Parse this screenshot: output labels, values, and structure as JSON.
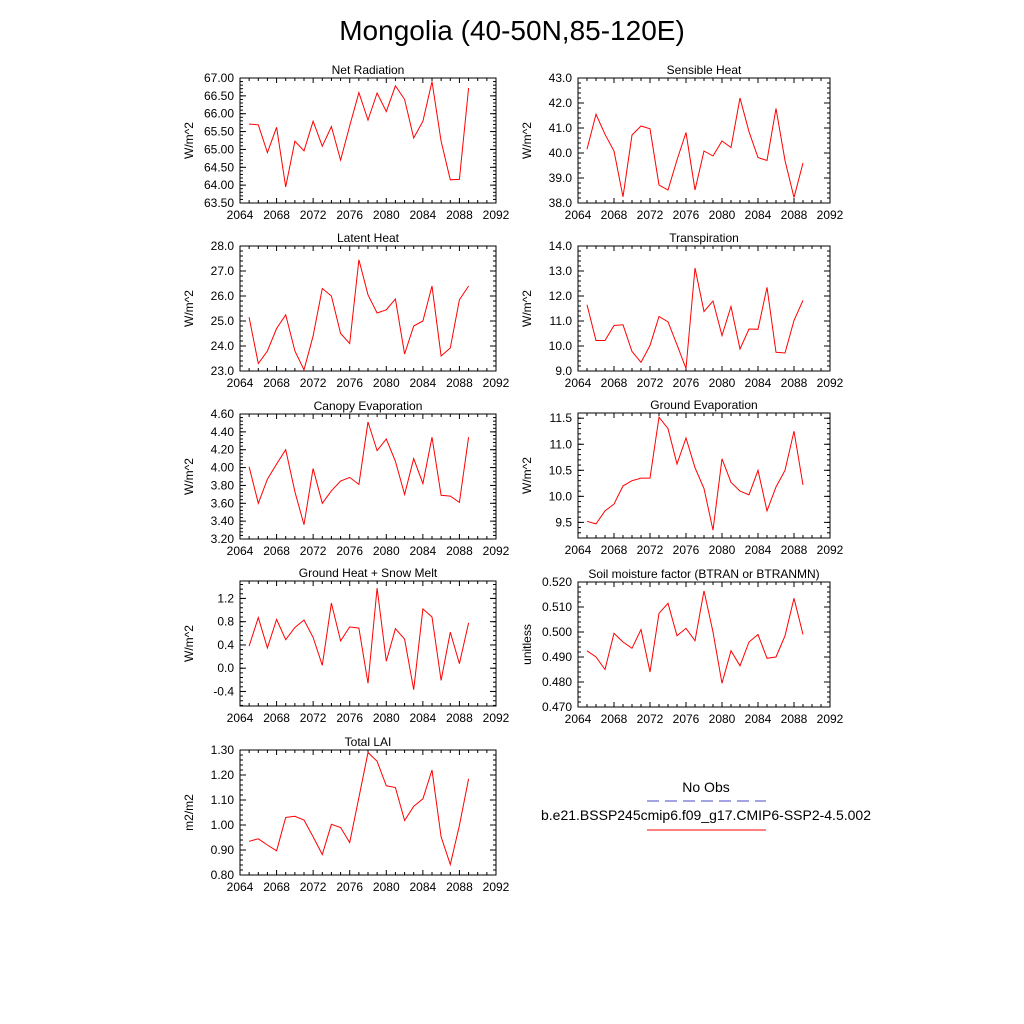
{
  "figure": {
    "title": "Mongolia (40-50N,85-120E)"
  },
  "legend": {
    "obs_label": "No Obs",
    "obs_color": "#4a4ac8",
    "model_label": "b.e21.BSSP245cmip6.f09_g17.CMIP6-SSP2-4.5.002",
    "model_color": "#ff0000"
  },
  "chart_data": [
    {
      "type": "line",
      "title": "Net Radiation",
      "ylabel": "W/m^2",
      "xlim": [
        2064,
        2092
      ],
      "ylim": [
        63.5,
        67.0
      ],
      "xticks": [
        "2064",
        "2068",
        "2072",
        "2076",
        "2080",
        "2084",
        "2088",
        "2092"
      ],
      "yticks": [
        "63.50",
        "64.00",
        "64.50",
        "65.00",
        "65.50",
        "66.00",
        "66.50",
        "67.00"
      ],
      "series": [
        {
          "x": [
            2065,
            2066,
            2067,
            2068,
            2069,
            2070,
            2071,
            2072,
            2073,
            2074,
            2075,
            2076,
            2077,
            2078,
            2079,
            2080,
            2081,
            2082,
            2083,
            2084,
            2085,
            2086,
            2087,
            2088,
            2089
          ],
          "values": [
            65.71,
            65.69,
            64.91,
            65.62,
            63.95,
            65.23,
            64.96,
            65.79,
            65.09,
            65.64,
            64.7,
            65.66,
            66.59,
            65.82,
            66.58,
            66.06,
            66.78,
            66.4,
            65.32,
            65.79,
            66.9,
            65.23,
            64.15,
            64.16,
            66.72
          ]
        }
      ]
    },
    {
      "type": "line",
      "title": "Sensible Heat",
      "ylabel": "W/m^2",
      "xlim": [
        2064,
        2092
      ],
      "ylim": [
        38.0,
        43.0
      ],
      "xticks": [
        "2064",
        "2068",
        "2072",
        "2076",
        "2080",
        "2084",
        "2088",
        "2092"
      ],
      "yticks": [
        "38.0",
        "39.0",
        "40.0",
        "41.0",
        "42.0",
        "43.0"
      ],
      "series": [
        {
          "x": [
            2065,
            2066,
            2067,
            2068,
            2069,
            2070,
            2071,
            2072,
            2073,
            2074,
            2075,
            2076,
            2077,
            2078,
            2079,
            2080,
            2081,
            2082,
            2083,
            2084,
            2085,
            2086,
            2087,
            2088,
            2089
          ],
          "values": [
            40.15,
            41.55,
            40.75,
            40.08,
            38.25,
            40.72,
            41.08,
            40.97,
            38.72,
            38.52,
            39.72,
            40.82,
            38.52,
            40.08,
            39.88,
            40.48,
            40.22,
            42.2,
            40.85,
            39.82,
            39.7,
            41.78,
            39.7,
            38.22,
            39.6
          ]
        }
      ]
    },
    {
      "type": "line",
      "title": "Latent Heat",
      "ylabel": "W/m^2",
      "xlim": [
        2064,
        2092
      ],
      "ylim": [
        23.0,
        28.0
      ],
      "xticks": [
        "2064",
        "2068",
        "2072",
        "2076",
        "2080",
        "2084",
        "2088",
        "2092"
      ],
      "yticks": [
        "23.0",
        "24.0",
        "25.0",
        "26.0",
        "27.0",
        "28.0"
      ],
      "series": [
        {
          "x": [
            2065,
            2066,
            2067,
            2068,
            2069,
            2070,
            2071,
            2072,
            2073,
            2074,
            2075,
            2076,
            2077,
            2078,
            2079,
            2080,
            2081,
            2082,
            2083,
            2084,
            2085,
            2086,
            2087,
            2088,
            2089
          ],
          "values": [
            25.15,
            23.3,
            23.8,
            24.7,
            25.25,
            23.8,
            23.05,
            24.4,
            26.3,
            26.0,
            24.5,
            24.1,
            27.45,
            26.05,
            25.32,
            25.45,
            25.88,
            23.68,
            24.8,
            25.0,
            26.4,
            23.6,
            23.92,
            25.85,
            26.4
          ]
        }
      ]
    },
    {
      "type": "line",
      "title": "Transpiration",
      "ylabel": "W/m^2",
      "xlim": [
        2064,
        2092
      ],
      "ylim": [
        9.0,
        14.0
      ],
      "xticks": [
        "2064",
        "2068",
        "2072",
        "2076",
        "2080",
        "2084",
        "2088",
        "2092"
      ],
      "yticks": [
        "9.0",
        "10.0",
        "11.0",
        "12.0",
        "13.0",
        "14.0"
      ],
      "series": [
        {
          "x": [
            2065,
            2066,
            2067,
            2068,
            2069,
            2070,
            2071,
            2072,
            2073,
            2074,
            2075,
            2076,
            2077,
            2078,
            2079,
            2080,
            2081,
            2082,
            2083,
            2084,
            2085,
            2086,
            2087,
            2088,
            2089
          ],
          "values": [
            11.65,
            10.22,
            10.22,
            10.82,
            10.85,
            9.78,
            9.35,
            10.02,
            11.18,
            10.97,
            10.05,
            9.1,
            13.12,
            11.38,
            11.8,
            10.42,
            11.58,
            9.88,
            10.68,
            10.67,
            12.35,
            9.75,
            9.72,
            11.02,
            11.83
          ]
        }
      ]
    },
    {
      "type": "line",
      "title": "Canopy Evaporation",
      "ylabel": "W/m^2",
      "xlim": [
        2064,
        2092
      ],
      "ylim": [
        3.2,
        4.6
      ],
      "xticks": [
        "2064",
        "2068",
        "2072",
        "2076",
        "2080",
        "2084",
        "2088",
        "2092"
      ],
      "yticks": [
        "3.20",
        "3.40",
        "3.60",
        "3.80",
        "4.00",
        "4.20",
        "4.40",
        "4.60"
      ],
      "series": [
        {
          "x": [
            2065,
            2066,
            2067,
            2068,
            2069,
            2070,
            2071,
            2072,
            2073,
            2074,
            2075,
            2076,
            2077,
            2078,
            2079,
            2080,
            2081,
            2082,
            2083,
            2084,
            2085,
            2086,
            2087,
            2088,
            2089
          ],
          "values": [
            4.01,
            3.6,
            3.87,
            4.04,
            4.2,
            3.73,
            3.36,
            3.99,
            3.6,
            3.74,
            3.85,
            3.89,
            3.81,
            4.51,
            4.19,
            4.32,
            4.07,
            3.7,
            4.1,
            3.82,
            4.34,
            3.69,
            3.68,
            3.61,
            4.34
          ]
        }
      ]
    },
    {
      "type": "line",
      "title": "Ground Evaporation",
      "ylabel": "W/m^2",
      "xlim": [
        2064,
        2092
      ],
      "ylim": [
        9.2,
        11.6
      ],
      "xticks": [
        "2064",
        "2068",
        "2072",
        "2076",
        "2080",
        "2084",
        "2088",
        "2092"
      ],
      "yticks": [
        "9.5",
        "10.0",
        "10.5",
        "11.0",
        "11.5"
      ],
      "series": [
        {
          "x": [
            2065,
            2066,
            2067,
            2068,
            2069,
            2070,
            2071,
            2072,
            2073,
            2074,
            2075,
            2076,
            2077,
            2078,
            2079,
            2080,
            2081,
            2082,
            2083,
            2084,
            2085,
            2086,
            2087,
            2088,
            2089
          ],
          "values": [
            9.52,
            9.47,
            9.72,
            9.85,
            10.2,
            10.3,
            10.35,
            10.35,
            11.52,
            11.3,
            10.62,
            11.12,
            10.55,
            10.15,
            9.35,
            10.72,
            10.27,
            10.1,
            10.03,
            10.5,
            9.72,
            10.18,
            10.5,
            11.25,
            10.22
          ]
        }
      ]
    },
    {
      "type": "line",
      "title": "Ground Heat + Snow Melt",
      "ylabel": "W/m^2",
      "xlim": [
        2064,
        2092
      ],
      "ylim": [
        -0.65,
        1.5
      ],
      "xticks": [
        "2064",
        "2068",
        "2072",
        "2076",
        "2080",
        "2084",
        "2088",
        "2092"
      ],
      "yticks": [
        "-0.4",
        "0.0",
        "0.4",
        "0.8",
        "1.2"
      ],
      "ytick_values": [
        -0.4,
        0.0,
        0.4,
        0.8,
        1.2
      ],
      "series": [
        {
          "x": [
            2065,
            2066,
            2067,
            2068,
            2069,
            2070,
            2071,
            2072,
            2073,
            2074,
            2075,
            2076,
            2077,
            2078,
            2079,
            2080,
            2081,
            2082,
            2083,
            2084,
            2085,
            2086,
            2087,
            2088,
            2089
          ],
          "values": [
            0.38,
            0.87,
            0.35,
            0.84,
            0.49,
            0.7,
            0.83,
            0.53,
            0.05,
            1.12,
            0.47,
            0.71,
            0.69,
            -0.26,
            1.38,
            0.12,
            0.68,
            0.5,
            -0.37,
            1.02,
            0.88,
            -0.21,
            0.62,
            0.08,
            0.78
          ]
        }
      ]
    },
    {
      "type": "line",
      "title": "Soil moisture factor (BTRAN or BTRANMN)",
      "ylabel": "unitless",
      "xlim": [
        2064,
        2092
      ],
      "ylim": [
        0.47,
        0.52
      ],
      "xticks": [
        "2064",
        "2068",
        "2072",
        "2076",
        "2080",
        "2084",
        "2088",
        "2092"
      ],
      "yticks": [
        "0.470",
        "0.480",
        "0.490",
        "0.500",
        "0.510",
        "0.520"
      ],
      "series": [
        {
          "x": [
            2065,
            2066,
            2067,
            2068,
            2069,
            2070,
            2071,
            2072,
            2073,
            2074,
            2075,
            2076,
            2077,
            2078,
            2079,
            2080,
            2081,
            2082,
            2083,
            2084,
            2085,
            2086,
            2087,
            2088,
            2089
          ],
          "values": [
            0.4925,
            0.49,
            0.485,
            0.4995,
            0.496,
            0.4935,
            0.501,
            0.484,
            0.5075,
            0.5115,
            0.4985,
            0.5015,
            0.4965,
            0.5165,
            0.5,
            0.4795,
            0.4925,
            0.4865,
            0.496,
            0.499,
            0.4895,
            0.49,
            0.4985,
            0.5135,
            0.499
          ]
        }
      ]
    },
    {
      "type": "line",
      "title": "Total LAI",
      "ylabel": "m2/m2",
      "xlim": [
        2064,
        2092
      ],
      "ylim": [
        0.8,
        1.3
      ],
      "xticks": [
        "2064",
        "2068",
        "2072",
        "2076",
        "2080",
        "2084",
        "2088",
        "2092"
      ],
      "yticks": [
        "0.80",
        "0.90",
        "1.00",
        "1.10",
        "1.20",
        "1.30"
      ],
      "series": [
        {
          "x": [
            2065,
            2066,
            2067,
            2068,
            2069,
            2070,
            2071,
            2072,
            2073,
            2074,
            2075,
            2076,
            2077,
            2078,
            2079,
            2080,
            2081,
            2082,
            2083,
            2084,
            2085,
            2086,
            2087,
            2088,
            2089
          ],
          "values": [
            0.935,
            0.945,
            0.92,
            0.897,
            1.03,
            1.035,
            1.02,
            0.953,
            0.882,
            1.003,
            0.99,
            0.93,
            1.11,
            1.29,
            1.255,
            1.157,
            1.15,
            1.018,
            1.075,
            1.105,
            1.22,
            0.953,
            0.842,
            0.998,
            1.185
          ]
        }
      ]
    }
  ]
}
